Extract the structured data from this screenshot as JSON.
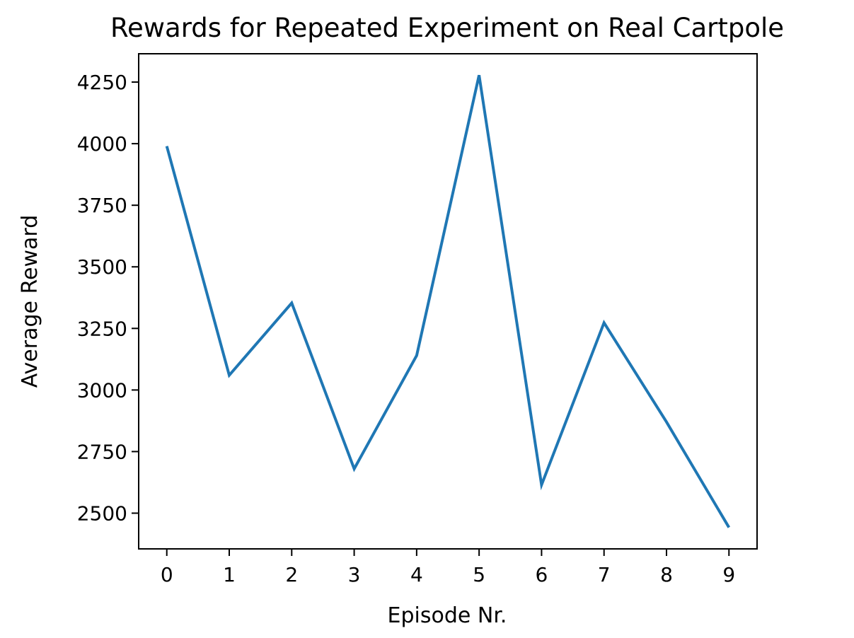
{
  "chart_data": {
    "type": "line",
    "title": "Rewards for Repeated Experiment on Real Cartpole",
    "xlabel": "Episode Nr.",
    "ylabel": "Average Reward",
    "x": [
      0,
      1,
      2,
      3,
      4,
      5,
      6,
      7,
      8,
      9
    ],
    "series": [
      {
        "values": [
          3990,
          3060,
          3353,
          2680,
          3140,
          4278,
          2615,
          3273,
          2870,
          2442
        ],
        "color": "#1f77b4"
      }
    ],
    "xticks": [
      "0",
      "1",
      "2",
      "3",
      "4",
      "5",
      "6",
      "7",
      "8",
      "9"
    ],
    "yticks": [
      "2500",
      "2750",
      "3000",
      "3250",
      "3500",
      "3750",
      "4000",
      "4250"
    ],
    "xlim": [
      -0.45,
      9.45
    ],
    "ylim": [
      2355,
      4365
    ],
    "grid": false,
    "legend": "none"
  }
}
